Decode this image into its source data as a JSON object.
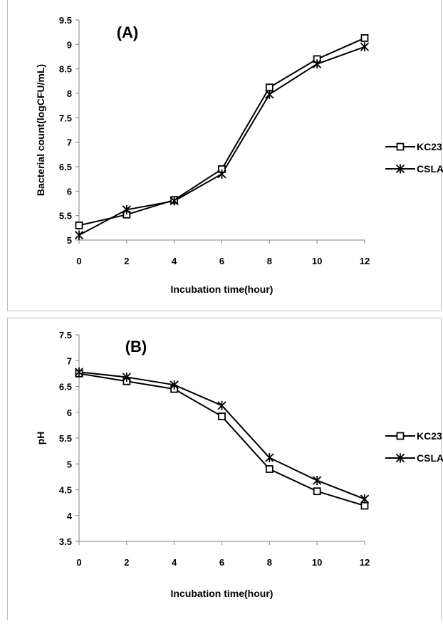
{
  "chart_data": [
    {
      "type": "line",
      "title": "(A)",
      "xlabel": "Incubation time(hour)",
      "ylabel": "Bacterial count(logCFU/mL)",
      "x": [
        0,
        2,
        4,
        6,
        8,
        10,
        12
      ],
      "xticks": [
        "0",
        "2",
        "4",
        "6",
        "8",
        "10",
        "12"
      ],
      "yticks": [
        "5",
        "5.5",
        "6",
        "6.5",
        "7",
        "7.5",
        "8",
        "8.5",
        "9",
        "9.5"
      ],
      "ylim": [
        5,
        9.5
      ],
      "xlim": [
        0,
        12
      ],
      "grid": false,
      "legend": "right",
      "series": [
        {
          "name": "KC23",
          "marker": "square",
          "values": [
            5.3,
            5.52,
            5.82,
            6.45,
            8.12,
            8.7,
            9.13
          ]
        },
        {
          "name": "CSLA",
          "marker": "asterisk",
          "values": [
            5.1,
            5.62,
            5.8,
            6.35,
            7.98,
            8.6,
            8.95
          ]
        }
      ]
    },
    {
      "type": "line",
      "title": "(B)",
      "xlabel": "Incubation time(hour)",
      "ylabel": "pH",
      "x": [
        0,
        2,
        4,
        6,
        8,
        10,
        12
      ],
      "xticks": [
        "0",
        "2",
        "4",
        "6",
        "8",
        "10",
        "12"
      ],
      "yticks": [
        "3.5",
        "4",
        "4.5",
        "5",
        "5.5",
        "6",
        "6.5",
        "7",
        "7.5"
      ],
      "ylim": [
        3.5,
        7.5
      ],
      "xlim": [
        0,
        12
      ],
      "grid": false,
      "legend": "right",
      "series": [
        {
          "name": "KC23",
          "marker": "square",
          "values": [
            6.75,
            6.6,
            6.45,
            5.92,
            4.9,
            4.47,
            4.19
          ]
        },
        {
          "name": "CSLA",
          "marker": "asterisk",
          "values": [
            6.78,
            6.68,
            6.53,
            6.13,
            5.12,
            4.68,
            4.32
          ]
        }
      ]
    }
  ]
}
